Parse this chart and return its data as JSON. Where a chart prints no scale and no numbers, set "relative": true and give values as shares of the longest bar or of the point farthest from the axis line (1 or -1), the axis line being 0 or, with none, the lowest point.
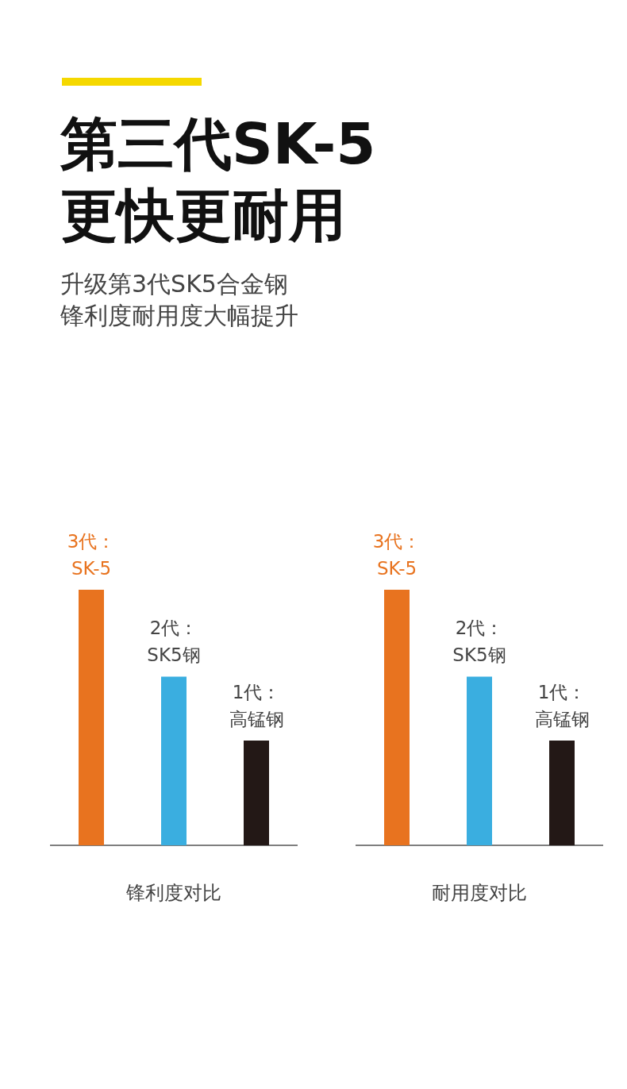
{
  "chart_data": [
    {
      "type": "bar",
      "title": "第三代SK-5\n更快更耐用",
      "subtitle": "升级第3代SK5合金钢锋利度耐用度大幅提升",
      "xlabel": "锋利度对比",
      "relative": true,
      "categories": [
        "3代：SK-5",
        "2代：SK5钢",
        "1代：高锰钢"
      ],
      "values": [
        1,
        0.66,
        0.41
      ],
      "colors": [
        "#e8731f",
        "#3aaee0",
        "#231816"
      ]
    },
    {
      "type": "bar",
      "xlabel": "耐用度对比",
      "relative": true,
      "categories": [
        "3代：SK-5",
        "2代：SK5钢",
        "1代：高锰钢"
      ],
      "values": [
        1,
        0.66,
        0.41
      ],
      "colors": [
        "#e8731f",
        "#3aaee0",
        "#231816"
      ]
    }
  ]
}
